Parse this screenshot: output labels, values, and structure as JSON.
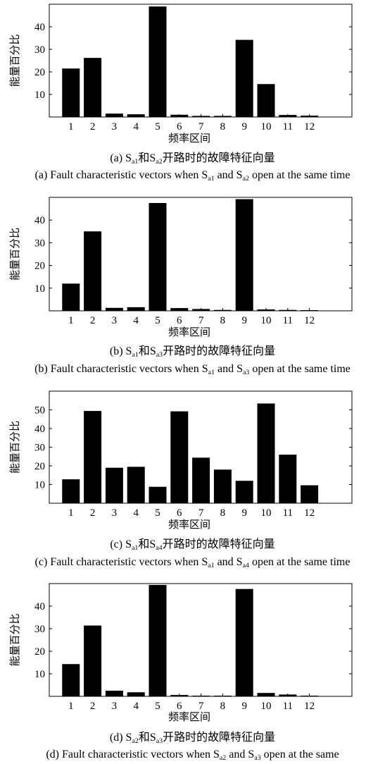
{
  "chart_data": [
    {
      "type": "bar",
      "ylabel": "能量百分比",
      "xlabel": "频率区间",
      "categories": [
        "1",
        "2",
        "3",
        "4",
        "5",
        "6",
        "7",
        "8",
        "9",
        "10",
        "11",
        "12"
      ],
      "values": [
        21.5,
        26.2,
        1.5,
        1.2,
        49.0,
        1.0,
        0.5,
        0.5,
        34.2,
        14.6,
        0.9,
        0.6
      ],
      "ylim": [
        0,
        50
      ],
      "yticks": [
        "10",
        "20",
        "30",
        "40"
      ],
      "caption_cn": {
        "p1": "(a) S",
        "s1": "a1",
        "p2": "和S",
        "s2": "a2",
        "p3": "开路时的故障特征向量"
      },
      "caption_en": {
        "p1": "(a) Fault characteristic vectors when S",
        "s1": "a1",
        "p2": " and S",
        "s2": "a2",
        "p3": " open at the same time"
      }
    },
    {
      "type": "bar",
      "ylabel": "能量百分比",
      "xlabel": "频率区间",
      "categories": [
        "1",
        "2",
        "3",
        "4",
        "5",
        "6",
        "7",
        "8",
        "9",
        "10",
        "11",
        "12"
      ],
      "values": [
        12.0,
        35.0,
        1.3,
        1.6,
        47.5,
        1.2,
        0.8,
        0.4,
        49.2,
        0.6,
        0.4,
        0.3
      ],
      "ylim": [
        0,
        50
      ],
      "yticks": [
        "10",
        "20",
        "30",
        "40"
      ],
      "caption_cn": {
        "p1": "(b) S",
        "s1": "a1",
        "p2": "和S",
        "s2": "a3",
        "p3": "开路时的故障特征向量"
      },
      "caption_en": {
        "p1": "(b) Fault characteristic vectors when S",
        "s1": "a1",
        "p2": " and S",
        "s2": "a3",
        "p3": " open at the same time"
      }
    },
    {
      "type": "bar",
      "ylabel": "能量百分比",
      "xlabel": "频率区间",
      "categories": [
        "1",
        "2",
        "3",
        "4",
        "5",
        "6",
        "7",
        "8",
        "9",
        "10",
        "11",
        "12"
      ],
      "values": [
        12.8,
        49.4,
        19.0,
        19.5,
        8.8,
        49.2,
        24.4,
        18.0,
        12.0,
        53.4,
        26.0,
        9.6
      ],
      "ylim": [
        0,
        60
      ],
      "yticks": [
        "10",
        "20",
        "30",
        "40",
        "50"
      ],
      "caption_cn": {
        "p1": "(c) S",
        "s1": "a1",
        "p2": "和S",
        "s2": "a4",
        "p3": "开路时的故障特征向量"
      },
      "caption_en": {
        "p1": "(c) Fault characteristic vectors when S",
        "s1": "a1",
        "p2": " and S",
        "s2": "a4",
        "p3": " open at the same time"
      }
    },
    {
      "type": "bar",
      "ylabel": "能量百分比",
      "xlabel": "频率区间",
      "categories": [
        "1",
        "2",
        "3",
        "4",
        "5",
        "6",
        "7",
        "8",
        "9",
        "10",
        "11",
        "12"
      ],
      "values": [
        14.3,
        31.4,
        2.5,
        1.8,
        49.4,
        0.6,
        0.3,
        0.3,
        47.6,
        1.5,
        0.8,
        0.3
      ],
      "ylim": [
        0,
        50
      ],
      "yticks": [
        "10",
        "20",
        "30",
        "40"
      ],
      "caption_cn": {
        "p1": "(d) S",
        "s1": "a2",
        "p2": "和S",
        "s2": "a3",
        "p3": "开路时的故障特征向量"
      },
      "caption_en": {
        "p1": "(d) Fault characteristic vectors when S",
        "s1": "a2",
        "p2": " and S",
        "s2": "a3",
        "p3": " open at the same"
      }
    }
  ]
}
